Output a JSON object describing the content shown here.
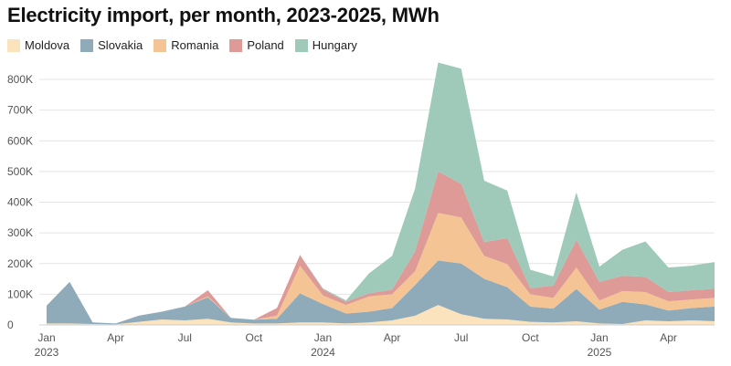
{
  "chart_data": {
    "type": "area",
    "stacked": true,
    "title": "Electricity import, per month, 2023-2025, MWh",
    "xlabel": "",
    "ylabel": "",
    "ylim": [
      0,
      860000
    ],
    "yticks": [
      0,
      100000,
      200000,
      300000,
      400000,
      500000,
      600000,
      700000,
      800000
    ],
    "ytick_labels": [
      "0",
      "100K",
      "200K",
      "300K",
      "400K",
      "500K",
      "600K",
      "700K",
      "800K"
    ],
    "xtick_labels": [
      {
        "index": 0,
        "label": "Jan",
        "sub": "2023"
      },
      {
        "index": 3,
        "label": "Apr",
        "sub": ""
      },
      {
        "index": 6,
        "label": "Jul",
        "sub": ""
      },
      {
        "index": 9,
        "label": "Oct",
        "sub": ""
      },
      {
        "index": 12,
        "label": "Jan",
        "sub": "2024"
      },
      {
        "index": 15,
        "label": "Apr",
        "sub": ""
      },
      {
        "index": 18,
        "label": "Jul",
        "sub": ""
      },
      {
        "index": 21,
        "label": "Oct",
        "sub": ""
      },
      {
        "index": 24,
        "label": "Jan",
        "sub": "2025"
      },
      {
        "index": 27,
        "label": "Apr",
        "sub": ""
      }
    ],
    "x": [
      "2023-01",
      "2023-02",
      "2023-03",
      "2023-04",
      "2023-05",
      "2023-06",
      "2023-07",
      "2023-08",
      "2023-09",
      "2023-10",
      "2023-11",
      "2023-12",
      "2024-01",
      "2024-02",
      "2024-03",
      "2024-04",
      "2024-05",
      "2024-06",
      "2024-07",
      "2024-08",
      "2024-09",
      "2024-10",
      "2024-11",
      "2024-12",
      "2025-01",
      "2025-02",
      "2025-03",
      "2025-04",
      "2025-05",
      "2025-06"
    ],
    "series": [
      {
        "name": "Moldova",
        "color": "#fbe3be",
        "values": [
          5000,
          5000,
          3000,
          2000,
          10000,
          18000,
          15000,
          20000,
          8000,
          5000,
          5000,
          8000,
          8000,
          5000,
          8000,
          15000,
          30000,
          65000,
          35000,
          20000,
          18000,
          10000,
          8000,
          12000,
          5000,
          3000,
          15000,
          12000,
          15000,
          12000
        ]
      },
      {
        "name": "Slovakia",
        "color": "#8faab8",
        "values": [
          58000,
          135000,
          5000,
          3000,
          20000,
          25000,
          45000,
          70000,
          15000,
          12000,
          15000,
          95000,
          60000,
          32000,
          35000,
          40000,
          100000,
          145000,
          165000,
          130000,
          105000,
          50000,
          45000,
          105000,
          45000,
          72000,
          52000,
          35000,
          40000,
          48000
        ]
      },
      {
        "name": "Romania",
        "color": "#f5c495",
        "values": [
          0,
          0,
          0,
          0,
          0,
          0,
          0,
          3000,
          0,
          0,
          10000,
          90000,
          28000,
          28000,
          50000,
          45000,
          45000,
          155000,
          150000,
          75000,
          75000,
          40000,
          35000,
          70000,
          30000,
          35000,
          40000,
          30000,
          28000,
          28000
        ]
      },
      {
        "name": "Poland",
        "color": "#dd9a97",
        "values": [
          0,
          0,
          0,
          0,
          0,
          0,
          0,
          20000,
          0,
          0,
          25000,
          35000,
          20000,
          10000,
          10000,
          15000,
          65000,
          135000,
          110000,
          45000,
          85000,
          20000,
          40000,
          90000,
          60000,
          50000,
          50000,
          30000,
          30000,
          30000
        ]
      },
      {
        "name": "Hungary",
        "color": "#9fcab9",
        "values": [
          0,
          0,
          0,
          0,
          0,
          0,
          0,
          0,
          0,
          0,
          0,
          0,
          3000,
          5000,
          65000,
          110000,
          205000,
          355000,
          375000,
          200000,
          155000,
          60000,
          30000,
          155000,
          50000,
          85000,
          115000,
          80000,
          80000,
          87000
        ]
      }
    ]
  }
}
